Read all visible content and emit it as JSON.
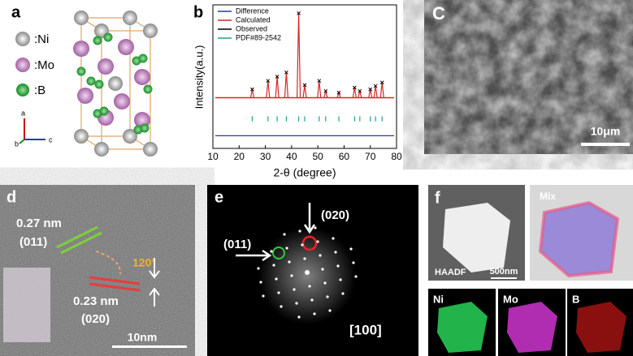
{
  "panels": {
    "a": {
      "label": "a",
      "legend": [
        ":Ni",
        ":Mo",
        ":B"
      ],
      "axes": [
        "a",
        "b",
        "c"
      ]
    },
    "c": {
      "label": "C",
      "scale": "10μm"
    },
    "d": {
      "label": "d",
      "d1": "0.27 nm",
      "p1": "(011)",
      "angle": "120°",
      "d2": "0.23 nm",
      "p2": "(020)",
      "scale": "10nm"
    },
    "e": {
      "label": "e",
      "p1": "(011)",
      "p2": "(020)",
      "zone": "[100]"
    },
    "f": {
      "label": "f",
      "haadf": "HAADF",
      "scale": "500nm",
      "mix": "Mix",
      "maps": [
        "Ni",
        "Mo",
        "B"
      ]
    }
  },
  "chart_data": {
    "type": "xrd",
    "label": "b",
    "xlabel": "2-θ (degree)",
    "ylabel": "Intensity(a.u.)",
    "xlim": [
      10,
      80
    ],
    "xticks": [
      10,
      20,
      30,
      40,
      50,
      60,
      70,
      80
    ],
    "ylim": [
      -60,
      110
    ],
    "x": [
      25,
      31,
      34.5,
      38,
      42.7,
      45,
      50.5,
      53,
      58,
      64,
      66,
      70,
      72,
      74.5
    ],
    "values": [
      10,
      20,
      25,
      30,
      100,
      15,
      20,
      8,
      6,
      12,
      8,
      10,
      14,
      18
    ],
    "series": [
      {
        "name": "Difference",
        "color": "#2b3a9a"
      },
      {
        "name": "Calculated",
        "color": "#d62728"
      },
      {
        "name": "Observed",
        "color": "#000000"
      },
      {
        "name": "PDF#89-2542",
        "color": "#1aa38a"
      }
    ]
  }
}
